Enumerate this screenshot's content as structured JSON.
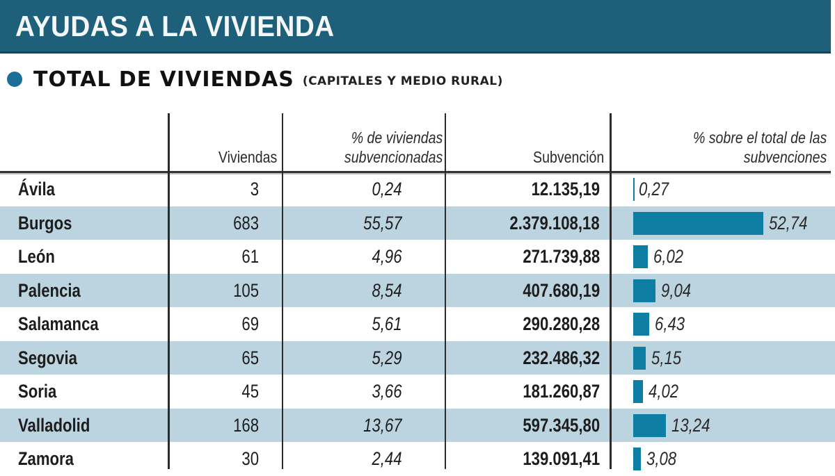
{
  "header": {
    "title": "AYUDAS A LA VIVIENDA"
  },
  "subtitle": {
    "main": "TOTAL DE VIVIENDAS",
    "note": "(CAPITALES Y MEDIO RURAL)"
  },
  "colors": {
    "header_bg": "#1e6079",
    "accent": "#0f7ea5",
    "row_shade": "#bcd3e0",
    "dot": "#1a6f99"
  },
  "table": {
    "columns": [
      {
        "key": "name",
        "label": ""
      },
      {
        "key": "viviendas",
        "label": "Viviendas"
      },
      {
        "key": "pct_viviendas",
        "label_line1": "% de viviendas",
        "label_line2": "subvencionadas"
      },
      {
        "key": "subvencion",
        "label": "Subvención"
      },
      {
        "key": "pct_total",
        "label_line1": "% sobre el total de las",
        "label_line2": "subvenciones"
      }
    ],
    "rows": [
      {
        "name": "Ávila",
        "viviendas": "3",
        "pct_viviendas": "0,24",
        "subvencion": "12.135,19",
        "pct_total": "0,27",
        "pct_total_num": 0.27
      },
      {
        "name": "Burgos",
        "viviendas": "683",
        "pct_viviendas": "55,57",
        "subvencion": "2.379.108,18",
        "pct_total": "52,74",
        "pct_total_num": 52.74
      },
      {
        "name": "León",
        "viviendas": "61",
        "pct_viviendas": "4,96",
        "subvencion": "271.739,88",
        "pct_total": "6,02",
        "pct_total_num": 6.02
      },
      {
        "name": "Palencia",
        "viviendas": "105",
        "pct_viviendas": "8,54",
        "subvencion": "407.680,19",
        "pct_total": "9,04",
        "pct_total_num": 9.04
      },
      {
        "name": "Salamanca",
        "viviendas": "69",
        "pct_viviendas": "5,61",
        "subvencion": "290.280,28",
        "pct_total": "6,43",
        "pct_total_num": 6.43
      },
      {
        "name": "Segovia",
        "viviendas": "65",
        "pct_viviendas": "5,29",
        "subvencion": "232.486,32",
        "pct_total": "5,15",
        "pct_total_num": 5.15
      },
      {
        "name": "Soria",
        "viviendas": "45",
        "pct_viviendas": "3,66",
        "subvencion": "181.260,87",
        "pct_total": "4,02",
        "pct_total_num": 4.02
      },
      {
        "name": "Valladolid",
        "viviendas": "168",
        "pct_viviendas": "13,67",
        "subvencion": "597.345,80",
        "pct_total": "13,24",
        "pct_total_num": 13.24
      },
      {
        "name": "Zamora",
        "viviendas": "30",
        "pct_viviendas": "2,44",
        "subvencion": "139.091,41",
        "pct_total": "3,08",
        "pct_total_num": 3.08
      }
    ]
  },
  "chart_data": {
    "type": "bar",
    "orientation": "horizontal",
    "title": "AYUDAS A LA VIVIENDA — TOTAL DE VIVIENDAS (CAPITALES Y MEDIO RURAL)",
    "xlabel": "% sobre el total de las subvenciones",
    "ylabel": "",
    "categories": [
      "Ávila",
      "Burgos",
      "León",
      "Palencia",
      "Salamanca",
      "Segovia",
      "Soria",
      "Valladolid",
      "Zamora"
    ],
    "values": [
      0.27,
      52.74,
      6.02,
      9.04,
      6.43,
      5.15,
      4.02,
      13.24,
      3.08
    ],
    "table_columns": {
      "Viviendas": [
        3,
        683,
        61,
        105,
        69,
        65,
        45,
        168,
        30
      ],
      "% de viviendas subvencionadas": [
        0.24,
        55.57,
        4.96,
        8.54,
        5.61,
        5.29,
        3.66,
        13.67,
        2.44
      ],
      "Subvención": [
        12135.19,
        2379108.18,
        271739.88,
        407680.19,
        290280.28,
        232486.32,
        181260.87,
        597345.8,
        139091.41
      ]
    },
    "xlim": [
      0,
      60
    ],
    "grid": false,
    "legend": null
  }
}
